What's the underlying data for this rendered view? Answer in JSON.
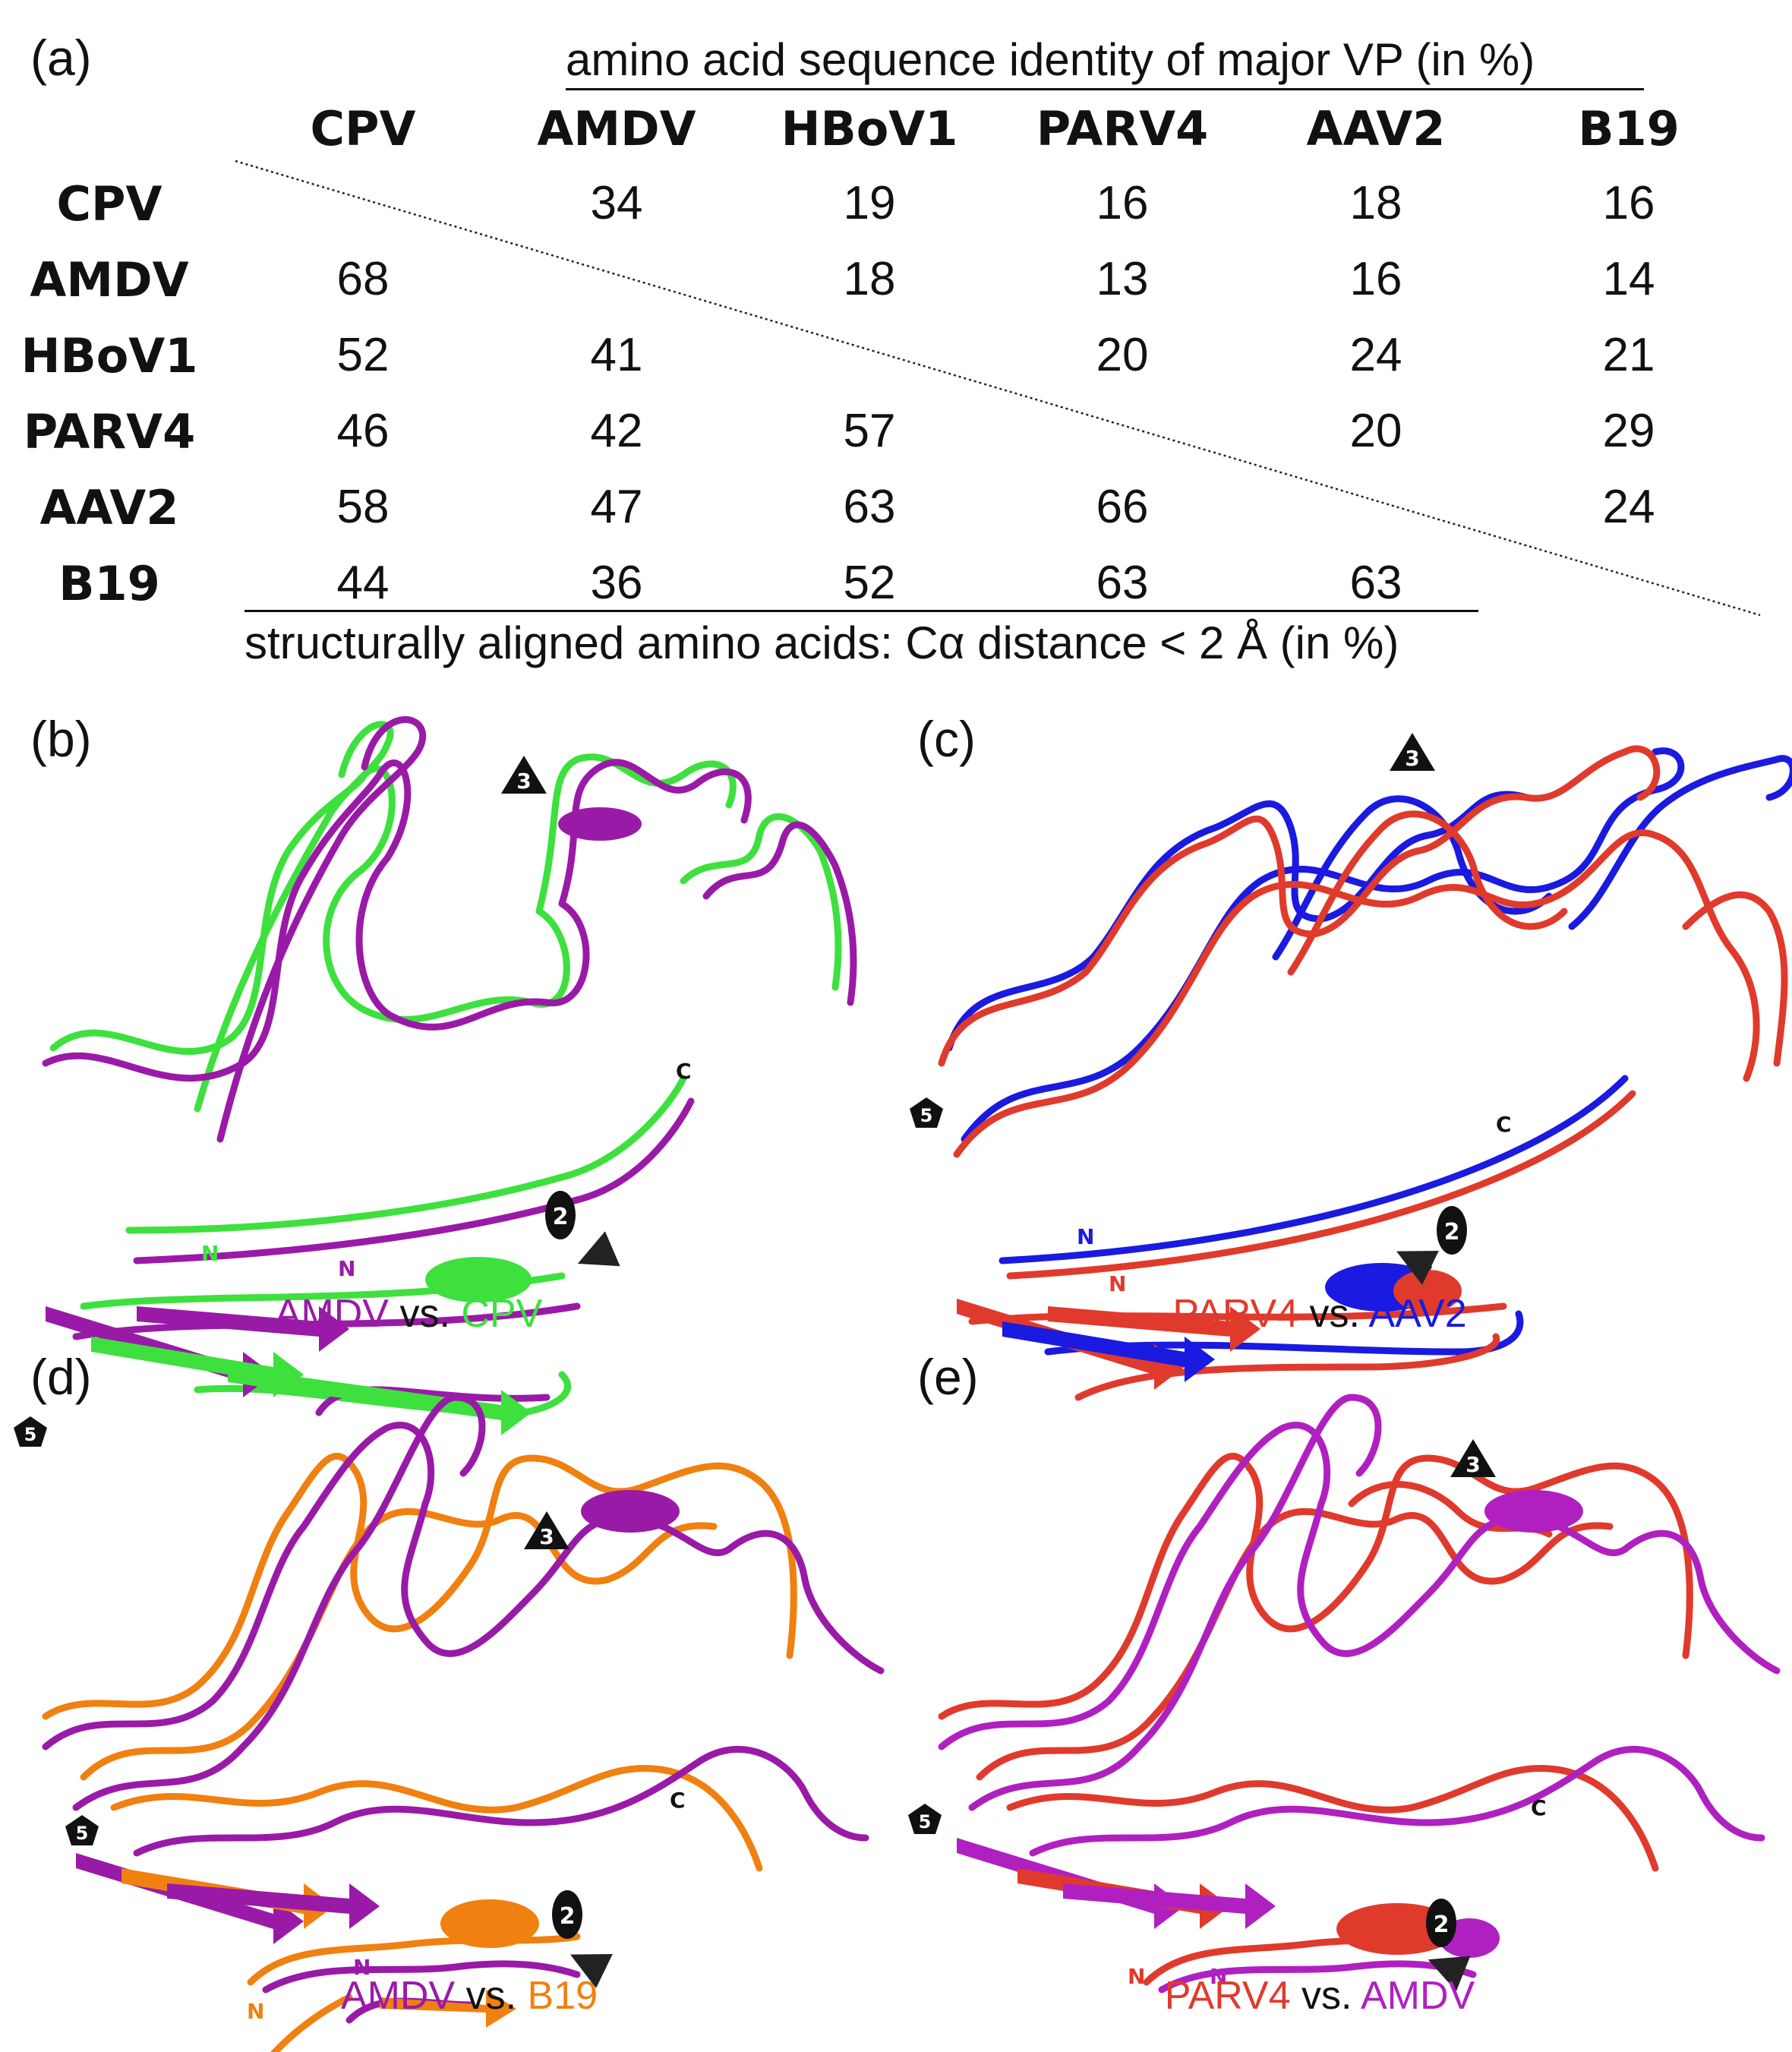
{
  "panel_a": {
    "label": "(a)",
    "top_title": "amino acid sequence identity of major VP (in %)",
    "bottom_title": "structurally aligned amino acids: Cα distance < 2 Å (in %)",
    "columns": [
      "CPV",
      "AMDV",
      "HBoV1",
      "PARV4",
      "AAV2",
      "B19"
    ],
    "rows": [
      {
        "name": "CPV",
        "cells": [
          "",
          "34",
          "19",
          "16",
          "18",
          "16"
        ]
      },
      {
        "name": "AMDV",
        "cells": [
          "68",
          "",
          "18",
          "13",
          "16",
          "14"
        ]
      },
      {
        "name": "HBoV1",
        "cells": [
          "52",
          "41",
          "",
          "20",
          "24",
          "21"
        ]
      },
      {
        "name": "PARV4",
        "cells": [
          "46",
          "42",
          "57",
          "",
          "20",
          "29"
        ]
      },
      {
        "name": "AAV2",
        "cells": [
          "58",
          "47",
          "63",
          "66",
          "",
          "24"
        ]
      },
      {
        "name": "B19",
        "cells": [
          "44",
          "36",
          "52",
          "63",
          "63",
          ""
        ]
      }
    ]
  },
  "panels": [
    {
      "label": "(b)",
      "name_a": "AMDV",
      "vs": "vs.",
      "name_b": "CPV",
      "color_a": "#9a1aa8",
      "color_b": "#3ee03e",
      "markers": {
        "three": "3",
        "five": "5",
        "two": "2",
        "n_a": "N",
        "n_b": "N",
        "c": "C"
      }
    },
    {
      "label": "(c)",
      "name_a": "PARV4",
      "vs": "vs.",
      "name_b": "AAV2",
      "color_a": "#e03a2c",
      "color_b": "#1a1ae0",
      "markers": {
        "three": "3",
        "five": "5",
        "two": "2",
        "n_a": "N",
        "n_b": "N",
        "c": "C"
      }
    },
    {
      "label": "(d)",
      "name_a": "AMDV",
      "vs": "vs.",
      "name_b": "B19",
      "color_a": "#9a1aa8",
      "color_b": "#f08010",
      "markers": {
        "three": "3",
        "five": "5",
        "two": "2",
        "n_a": "N",
        "n_b": "N",
        "c": "C"
      }
    },
    {
      "label": "(e)",
      "name_a": "PARV4",
      "vs": "vs.",
      "name_b": "AMDV",
      "color_a": "#e03a2c",
      "color_b": "#b020c0",
      "markers": {
        "three": "3",
        "five": "5",
        "two": "2",
        "n_a": "N",
        "n_b": "N",
        "c": "C"
      }
    }
  ]
}
